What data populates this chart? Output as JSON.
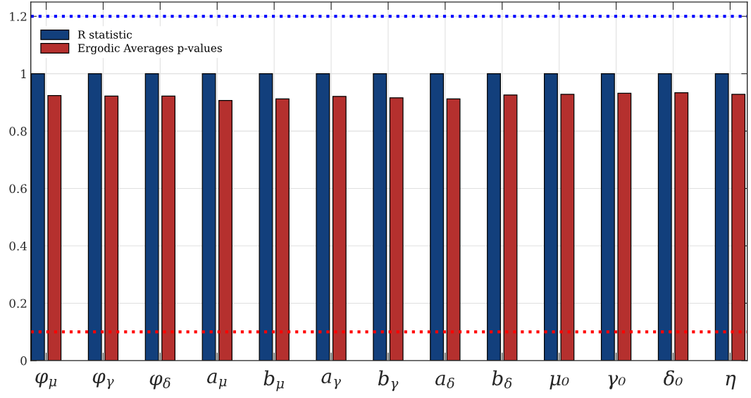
{
  "chart_data": {
    "type": "bar",
    "categories": [
      "φ$_{μ}$",
      "φ$_{γ}$",
      "φ$_{δ}$",
      "a$_{μ}$",
      "b$_{μ}$",
      "a$_{γ}$",
      "b$_{γ}$",
      "a$_{δ}$",
      "b$_{δ}$",
      "μ₀",
      "γ₀",
      "δ₀",
      "η"
    ],
    "series": [
      {
        "name": "R statistic",
        "color": "#123f7c",
        "values": [
          1,
          1,
          1,
          1,
          1,
          1,
          1,
          1,
          1,
          1,
          1,
          1,
          1
        ]
      },
      {
        "name": "Ergodic Averages p-values",
        "color": "#b5302e",
        "values": [
          0.924,
          0.922,
          0.922,
          0.907,
          0.912,
          0.921,
          0.916,
          0.912,
          0.926,
          0.928,
          0.932,
          0.934,
          0.928
        ]
      }
    ],
    "ylim": [
      0,
      1.25
    ],
    "yticks": [
      0,
      0.2,
      0.4,
      0.6,
      0.8,
      1,
      1.2
    ],
    "grid": true,
    "legend": "top left",
    "ref_lines": [
      {
        "axis": "y",
        "value": 1.2,
        "color": "#0000ff",
        "line_style": "dotted"
      },
      {
        "axis": "y",
        "value": 0.1,
        "color": "#ff0000",
        "line_style": "dotted"
      }
    ]
  }
}
